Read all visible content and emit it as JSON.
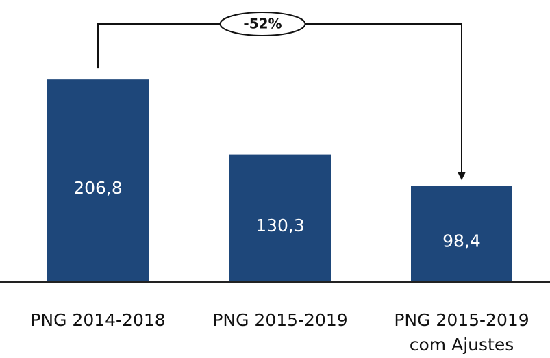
{
  "chart_data": {
    "type": "bar",
    "categories": [
      "PNG 2014-2018",
      "PNG 2015-2019",
      "PNG 2015-2019 com Ajustes"
    ],
    "values": [
      206.8,
      130.3,
      98.4
    ],
    "value_labels": [
      "206,8",
      "130,3",
      "98,4"
    ],
    "color": "#1e477a",
    "ylim": [
      0,
      288
    ],
    "annotation": "-52%"
  }
}
